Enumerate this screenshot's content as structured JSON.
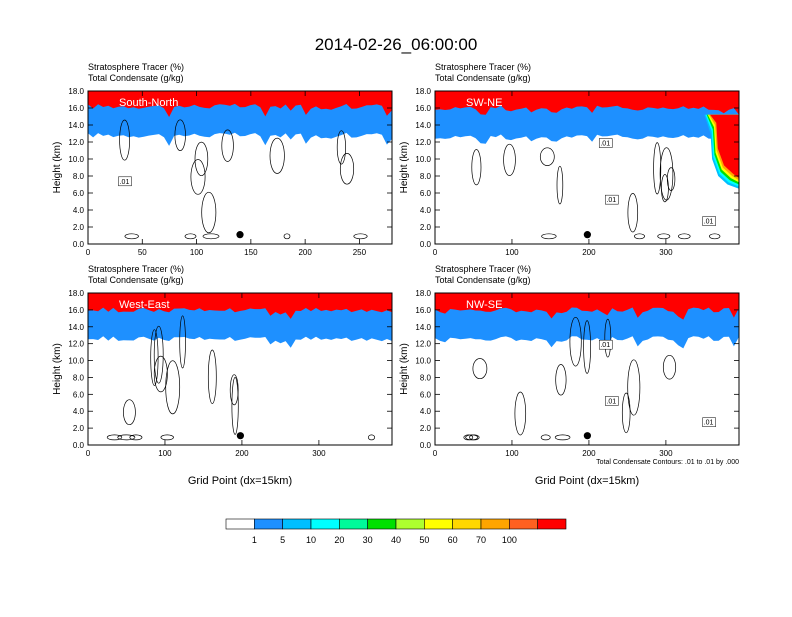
{
  "page_title": "2014-02-26_06:00:00",
  "chart_data": [
    {
      "type": "heatmap",
      "title_lines": [
        "Stratosphere Tracer   (%)",
        "Total Condensate   (g/kg)"
      ],
      "panel_label": "South-North",
      "ylabel": "Height (km)",
      "xlabel": "",
      "xlim": [
        0,
        280
      ],
      "ylim": [
        0,
        18
      ],
      "xticks": [
        0,
        50,
        100,
        150,
        200,
        250
      ],
      "yticks": [
        0,
        2,
        4,
        6,
        8,
        10,
        12,
        14,
        16,
        18
      ],
      "contour_labels": [
        ".01"
      ],
      "tropopause_base_km": 15.2,
      "marker": {
        "x": 140,
        "y": 1.1
      }
    },
    {
      "type": "heatmap",
      "title_lines": [
        "Stratosphere Tracer   (%)",
        "Total Condensate   (g/kg)"
      ],
      "panel_label": "SW-NE",
      "ylabel": "Height (km)",
      "xlabel": "",
      "xlim": [
        0,
        395
      ],
      "ylim": [
        0,
        18
      ],
      "xticks": [
        0,
        100,
        200,
        300
      ],
      "yticks": [
        0,
        2,
        4,
        6,
        8,
        10,
        12,
        14,
        16,
        18
      ],
      "contour_labels": [
        ".01",
        ".01",
        ".01"
      ],
      "tropopause_base_km": 15.0,
      "marker": {
        "x": 198,
        "y": 1.1
      }
    },
    {
      "type": "heatmap",
      "title_lines": [
        "Stratosphere Tracer   (%)",
        "Total Condensate   (g/kg)"
      ],
      "panel_label": "West-East",
      "ylabel": "Height (km)",
      "xlabel": "Grid Point (dx=15km)",
      "xlim": [
        0,
        395
      ],
      "ylim": [
        0,
        18
      ],
      "xticks": [
        0,
        100,
        200,
        300
      ],
      "yticks": [
        0,
        2,
        4,
        6,
        8,
        10,
        12,
        14,
        16,
        18
      ],
      "contour_labels": [],
      "tropopause_base_km": 15.0,
      "marker": {
        "x": 198,
        "y": 1.1
      }
    },
    {
      "type": "heatmap",
      "title_lines": [
        "Stratosphere Tracer   (%)",
        "Total Condensate   (g/kg)"
      ],
      "panel_label": "NW-SE",
      "ylabel": "Height (km)",
      "xlabel": "Grid Point (dx=15km)",
      "xlim": [
        0,
        395
      ],
      "ylim": [
        0,
        18
      ],
      "xticks": [
        0,
        100,
        200,
        300
      ],
      "yticks": [
        0,
        2,
        4,
        6,
        8,
        10,
        12,
        14,
        16,
        18
      ],
      "contour_labels": [
        ".01",
        ".01",
        ".01"
      ],
      "tropopause_base_km": 15.0,
      "marker": {
        "x": 198,
        "y": 1.1
      },
      "footnote": "Total Condensate Contours: .01 to .01 by .000"
    }
  ],
  "colorbar": {
    "levels": [
      "1",
      "5",
      "10",
      "20",
      "30",
      "40",
      "50",
      "60",
      "70",
      "100"
    ],
    "colors": [
      "#ffffff",
      "#1e90ff",
      "#00bfff",
      "#00ffff",
      "#00fa9a",
      "#00e000",
      "#adff2f",
      "#ffff00",
      "#ffd700",
      "#ffa500",
      "#ff6020",
      "#ff0000"
    ]
  }
}
